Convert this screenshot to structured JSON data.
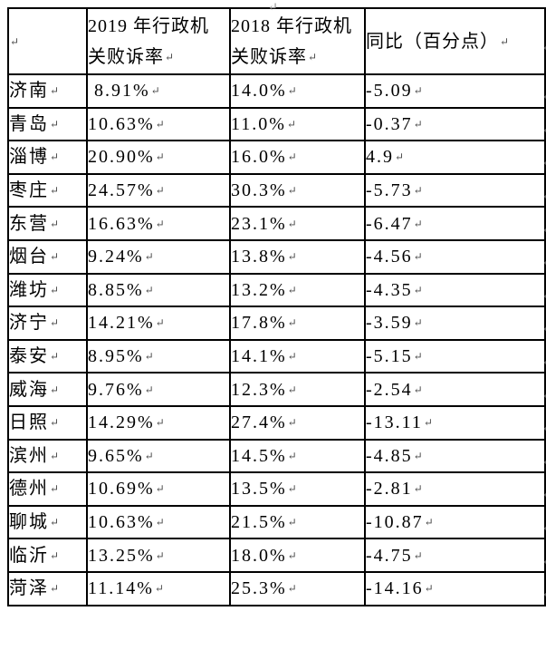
{
  "page": {
    "background": "#ffffff",
    "border_color": "#000000"
  },
  "marks": {
    "paragraph_mark": "↵"
  },
  "table": {
    "columns": [
      {
        "key": "city",
        "label": ""
      },
      {
        "key": "rate2019",
        "label": "2019 年行政机\n关败诉率"
      },
      {
        "key": "rate2018",
        "label": "2018 年行政机\n关败诉率"
      },
      {
        "key": "yoy",
        "label": "同比（百分点）"
      }
    ],
    "rows": [
      {
        "city": "济南",
        "rate2019": " 8.91%",
        "rate2018": "14.0%",
        "yoy": "-5.09"
      },
      {
        "city": "青岛",
        "rate2019": "10.63%",
        "rate2018": "11.0%",
        "yoy": "-0.37"
      },
      {
        "city": "淄博",
        "rate2019": "20.90%",
        "rate2018": "16.0%",
        "yoy": "4.9"
      },
      {
        "city": "枣庄",
        "rate2019": "24.57%",
        "rate2018": "30.3%",
        "yoy": "-5.73"
      },
      {
        "city": "东营",
        "rate2019": "16.63%",
        "rate2018": "23.1%",
        "yoy": "-6.47"
      },
      {
        "city": "烟台",
        "rate2019": "9.24%",
        "rate2018": "13.8%",
        "yoy": "-4.56"
      },
      {
        "city": "潍坊",
        "rate2019": "8.85%",
        "rate2018": "13.2%",
        "yoy": "-4.35"
      },
      {
        "city": "济宁",
        "rate2019": "14.21%",
        "rate2018": "17.8%",
        "yoy": "-3.59"
      },
      {
        "city": "泰安",
        "rate2019": "8.95%",
        "rate2018": "14.1%",
        "yoy": "-5.15"
      },
      {
        "city": "威海",
        "rate2019": "9.76%",
        "rate2018": "12.3%",
        "yoy": "-2.54"
      },
      {
        "city": "日照",
        "rate2019": "14.29%",
        "rate2018": "27.4%",
        "yoy": "-13.11"
      },
      {
        "city": "滨州",
        "rate2019": "9.65%",
        "rate2018": "14.5%",
        "yoy": "-4.85"
      },
      {
        "city": "德州",
        "rate2019": "10.69%",
        "rate2018": "13.5%",
        "yoy": "-2.81"
      },
      {
        "city": "聊城",
        "rate2019": "10.63%",
        "rate2018": "21.5%",
        "yoy": "-10.87"
      },
      {
        "city": "临沂",
        "rate2019": "13.25%",
        "rate2018": "18.0%",
        "yoy": "-4.75"
      },
      {
        "city": "菏泽",
        "rate2019": "11.14%",
        "rate2018": "25.3%",
        "yoy": "-14.16"
      }
    ]
  }
}
